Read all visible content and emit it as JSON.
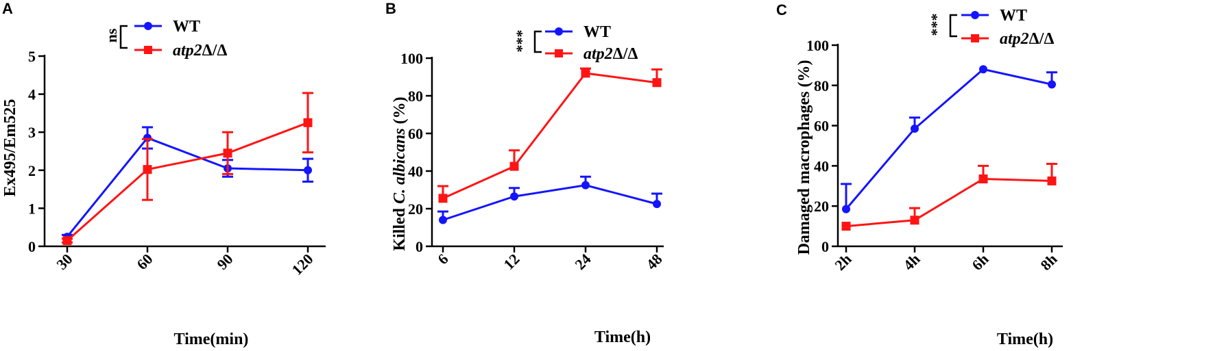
{
  "colors": {
    "wt": "#1414ff",
    "mutant": "#ff1414"
  },
  "chart_data": [
    {
      "panel": "A",
      "type": "line",
      "categories": [
        "30",
        "60",
        "90",
        "120"
      ],
      "xlabel": "Time(min)",
      "ylabel": "Ex495/Em525",
      "ylim": [
        0,
        5
      ],
      "yticks": [
        "0",
        "1",
        "2",
        "3",
        "4",
        "5"
      ],
      "significance": "ns",
      "series": [
        {
          "name": "WT",
          "italic": false,
          "color_key": "wt",
          "marker": "circle",
          "values": [
            0.25,
            2.85,
            2.05,
            2.0
          ],
          "errors": [
            0.05,
            0.28,
            0.22,
            0.3
          ]
        },
        {
          "name": "atp2Δ/Δ",
          "italic_part": "atp2",
          "plain_part": "Δ/Δ",
          "color_key": "mutant",
          "marker": "square",
          "values": [
            0.15,
            2.02,
            2.45,
            3.25
          ],
          "errors": [
            0.05,
            0.8,
            0.55,
            0.78
          ]
        }
      ]
    },
    {
      "panel": "B",
      "type": "line",
      "categories": [
        "6",
        "12",
        "24",
        "48"
      ],
      "xlabel": "Time(h)",
      "ylabel_prefix": "Killed ",
      "ylabel_italic": "C. albicans",
      "ylabel_suffix": " (%)",
      "ylim": [
        0,
        100
      ],
      "yticks": [
        "0",
        "20",
        "40",
        "60",
        "80",
        "100"
      ],
      "significance": "***",
      "series": [
        {
          "name": "WT",
          "color_key": "wt",
          "marker": "circle",
          "values": [
            14,
            26.5,
            32.5,
            22.5
          ],
          "errors": [
            4.5,
            4.5,
            4.5,
            5.5
          ]
        },
        {
          "name": "atp2Δ/Δ",
          "italic_part": "atp2",
          "plain_part": "Δ/Δ",
          "color_key": "mutant",
          "marker": "square",
          "values": [
            25.5,
            42.5,
            92,
            87
          ],
          "errors": [
            6.5,
            8.5,
            2.5,
            7
          ]
        }
      ]
    },
    {
      "panel": "C",
      "type": "line",
      "categories": [
        "2h",
        "4h",
        "6h",
        "8h"
      ],
      "xlabel": "Time(h)",
      "ylabel": "Damaged macrophages (%)",
      "ylim": [
        0,
        100
      ],
      "yticks": [
        "0",
        "20",
        "40",
        "60",
        "80",
        "100"
      ],
      "significance": "***",
      "series": [
        {
          "name": "WT",
          "color_key": "wt",
          "marker": "circle",
          "values": [
            18.5,
            58.5,
            88,
            80.5
          ],
          "errors": [
            12.5,
            5.5,
            0,
            6
          ]
        },
        {
          "name": "atp2Δ/Δ",
          "italic_part": "atp2",
          "plain_part": "Δ/Δ",
          "color_key": "mutant",
          "marker": "square",
          "values": [
            10,
            13,
            33.5,
            32.5
          ],
          "errors": [
            0,
            6,
            6.5,
            8.5
          ]
        }
      ]
    }
  ]
}
